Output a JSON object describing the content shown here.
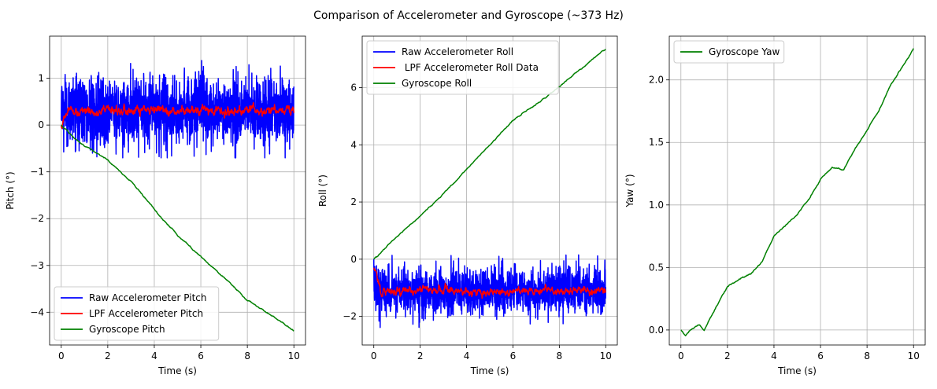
{
  "figure": {
    "title": "Comparison of Accelerometer and Gyroscope (~373 Hz)"
  },
  "chart_data": [
    {
      "type": "line",
      "xlabel": "Time (s)",
      "ylabel": "Pitch (°)",
      "xlim": [
        -0.5,
        10.5
      ],
      "ylim": [
        -4.7,
        1.9
      ],
      "xticks": [
        0,
        2,
        4,
        6,
        8,
        10
      ],
      "yticks": [
        -4,
        -3,
        -2,
        -1,
        0,
        1
      ],
      "grid": true,
      "legend_position": "lower-left",
      "series": [
        {
          "name": "Raw Accelerometer Pitch",
          "color": "#0000ff",
          "noise": "raw",
          "x": [
            0,
            10
          ],
          "y": [
            0.3,
            0.3
          ],
          "noise_min": -0.7,
          "noise_max": 1.6
        },
        {
          "name": "LPF Accelerometer Pitch",
          "color": "#ff0000",
          "noise": "lpf",
          "x": [
            0,
            0.3,
            10
          ],
          "y": [
            0.0,
            0.3,
            0.3
          ],
          "noise_min": 0.05,
          "noise_max": 0.55
        },
        {
          "name": "Gyroscope Pitch",
          "color": "#008000",
          "noise": "gyro",
          "x": [
            0,
            0.5,
            1.0,
            2.0,
            3.0,
            4.0,
            5.0,
            6.0,
            7.0,
            8.0,
            9.0,
            10.0
          ],
          "y": [
            0.0,
            -0.25,
            -0.45,
            -0.75,
            -1.2,
            -1.8,
            -2.35,
            -2.8,
            -3.25,
            -3.75,
            -4.05,
            -4.4
          ]
        }
      ]
    },
    {
      "type": "line",
      "xlabel": "Time (s)",
      "ylabel": "Roll (°)",
      "xlim": [
        -0.5,
        10.5
      ],
      "ylim": [
        -3.0,
        7.8
      ],
      "xticks": [
        0,
        2,
        4,
        6,
        8,
        10
      ],
      "yticks": [
        -2,
        0,
        2,
        4,
        6
      ],
      "grid": true,
      "legend_position": "upper-left",
      "series": [
        {
          "name": "Raw Accelerometer Roll",
          "color": "#0000ff",
          "noise": "raw",
          "x": [
            0,
            10
          ],
          "y": [
            -1.1,
            -1.1
          ],
          "noise_min": -2.4,
          "noise_max": 0.15
        },
        {
          "name": " LPF Accelerometer Roll Data",
          "color": "#ff0000",
          "noise": "lpf",
          "x": [
            0,
            0.3,
            10
          ],
          "y": [
            -0.2,
            -1.1,
            -1.1
          ],
          "noise_min": -1.45,
          "noise_max": -0.75
        },
        {
          "name": "Gyroscope Roll",
          "color": "#008000",
          "noise": "gyro",
          "x": [
            0,
            1.0,
            2.0,
            3.0,
            4.0,
            5.0,
            6.0,
            7.0,
            8.0,
            9.0,
            10.0
          ],
          "y": [
            0.0,
            0.8,
            1.5,
            2.3,
            3.15,
            4.0,
            4.85,
            5.4,
            6.05,
            6.7,
            7.35
          ]
        }
      ]
    },
    {
      "type": "line",
      "xlabel": "Time (s)",
      "ylabel": "Yaw (°)",
      "xlim": [
        -0.5,
        10.5
      ],
      "ylim": [
        -0.12,
        2.35
      ],
      "xticks": [
        0,
        2,
        4,
        6,
        8,
        10
      ],
      "yticks": [
        0.0,
        0.5,
        1.0,
        1.5,
        2.0
      ],
      "ytick_labels": [
        "0.0",
        "0.5",
        "1.0",
        "1.5",
        "2.0"
      ],
      "grid": true,
      "legend_position": "upper-left",
      "series": [
        {
          "name": "Gyroscope Yaw",
          "color": "#008000",
          "noise": "gyro",
          "x": [
            0,
            0.2,
            0.4,
            0.8,
            1.0,
            2.0,
            3.0,
            3.5,
            4.0,
            5.0,
            5.5,
            6.0,
            6.5,
            7.0,
            7.5,
            8.0,
            8.5,
            9.0,
            9.5,
            10.0
          ],
          "y": [
            0.0,
            -0.05,
            0.0,
            0.05,
            0.0,
            0.35,
            0.45,
            0.55,
            0.75,
            0.92,
            1.05,
            1.2,
            1.3,
            1.28,
            1.45,
            1.6,
            1.75,
            1.95,
            2.1,
            2.25
          ]
        }
      ]
    }
  ]
}
